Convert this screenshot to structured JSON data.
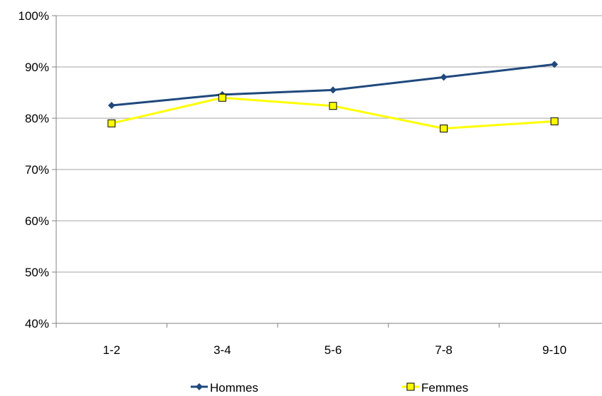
{
  "chart_data": {
    "type": "line",
    "title": "",
    "xlabel": "",
    "ylabel": "",
    "categories": [
      "1-2",
      "3-4",
      "5-6",
      "7-8",
      "9-10"
    ],
    "y_ticks": [
      "40%",
      "50%",
      "60%",
      "70%",
      "80%",
      "90%",
      "100%"
    ],
    "ylim": [
      40,
      100
    ],
    "grid": "horizontal",
    "legend_position": "bottom",
    "series": [
      {
        "name": "Hommes",
        "values": [
          82.5,
          84.6,
          85.5,
          88.0,
          90.5
        ],
        "color": "#1F497D",
        "marker": "diamond"
      },
      {
        "name": "Femmes",
        "values": [
          79.0,
          84.0,
          82.4,
          78.0,
          79.4
        ],
        "color": "#FFFF00",
        "marker_border": "#000000",
        "marker": "square"
      }
    ]
  }
}
